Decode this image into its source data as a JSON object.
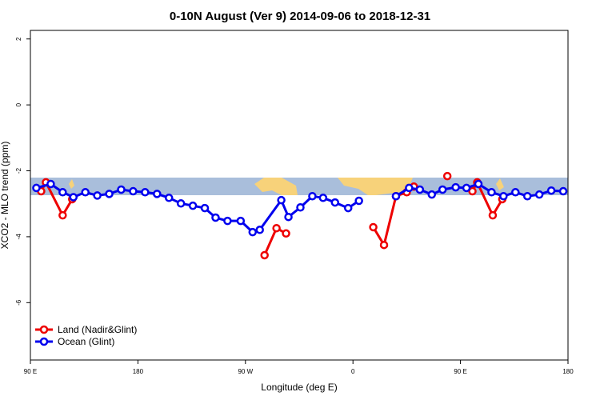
{
  "chart_data": {
    "type": "line",
    "title": "0-10N August (Ver 9)   2014-09-06 to 2018-12-31",
    "x_label": "Longitude (deg E)",
    "y_label": "XCO2 - MLO trend (ppm)",
    "xlim": [
      90,
      540
    ],
    "ylim": [
      -7.74,
      2.26
    ],
    "xticks": [
      {
        "value": 90,
        "label": "90 E"
      },
      180,
      {
        "value": 270,
        "label": "90 W"
      },
      {
        "value": 360,
        "label": "0"
      },
      {
        "value": 450,
        "label": "90 E"
      },
      {
        "value": 540,
        "label": "180"
      }
    ],
    "yticks": [
      2,
      0,
      -2,
      -4,
      -6
    ],
    "legend": "bottom-left",
    "series": [
      {
        "name": "Land (Nadir&Glint)",
        "color": "#ee0000",
        "x": [
          99,
          103,
          117,
          125,
          null,
          286,
          296,
          304,
          null,
          377,
          386,
          396,
          405,
          411,
          null,
          439,
          null,
          460,
          464,
          477,
          485
        ],
        "values": [
          -2.62,
          -2.35,
          -3.35,
          -2.86,
          null,
          -4.56,
          -3.74,
          -3.9,
          null,
          -3.71,
          -4.25,
          -2.77,
          -2.65,
          -2.48,
          null,
          -2.16,
          null,
          -2.62,
          -2.35,
          -3.35,
          -2.86
        ]
      },
      {
        "name": "Ocean (Glint)",
        "color": "#0000ee",
        "x": [
          95,
          107,
          117,
          126,
          136,
          146,
          156,
          166,
          176,
          186,
          196,
          206,
          216,
          226,
          236,
          245,
          255,
          266,
          276,
          282,
          300,
          306,
          316,
          326,
          335,
          345,
          356,
          365,
          null,
          396,
          407,
          416,
          426,
          435,
          446,
          455,
          465,
          476,
          486,
          496,
          506,
          516,
          526,
          536
        ],
        "values": [
          -2.52,
          -2.4,
          -2.65,
          -2.8,
          -2.65,
          -2.75,
          -2.7,
          -2.57,
          -2.62,
          -2.65,
          -2.7,
          -2.82,
          -2.99,
          -3.06,
          -3.13,
          -3.42,
          -3.52,
          -3.52,
          -3.86,
          -3.79,
          -2.89,
          -3.4,
          -3.11,
          -2.77,
          -2.82,
          -2.96,
          -3.13,
          -2.91,
          null,
          -2.77,
          -2.52,
          -2.57,
          -2.72,
          -2.57,
          -2.5,
          -2.52,
          -2.4,
          -2.65,
          -2.77,
          -2.65,
          -2.77,
          -2.72,
          -2.6,
          -2.62
        ]
      }
    ]
  }
}
